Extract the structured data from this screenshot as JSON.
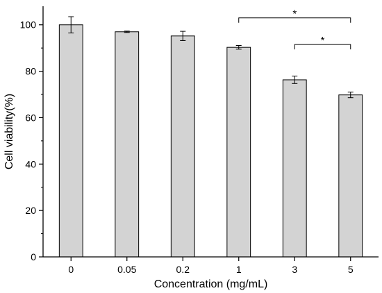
{
  "chart_data": {
    "type": "bar",
    "categories": [
      "0",
      "0.05",
      "0.2",
      "1",
      "3",
      "5"
    ],
    "values": [
      100,
      97,
      95.2,
      90.3,
      76.3,
      69.8
    ],
    "errors": [
      3.5,
      0.3,
      2.0,
      0.8,
      1.6,
      1.2
    ],
    "xlabel": "Concentration (mg/mL)",
    "ylabel": "Cell viability(%)",
    "ylim": [
      0,
      108
    ],
    "yticks": [
      "0",
      "20",
      "40",
      "60",
      "80",
      "100"
    ],
    "grid": false,
    "bar_color": "#d3d3d3",
    "significance": [
      {
        "from": "1",
        "to": "5",
        "label": "*",
        "y": 103
      },
      {
        "from": "3",
        "to": "5",
        "label": "*",
        "y": 91.5
      }
    ]
  }
}
